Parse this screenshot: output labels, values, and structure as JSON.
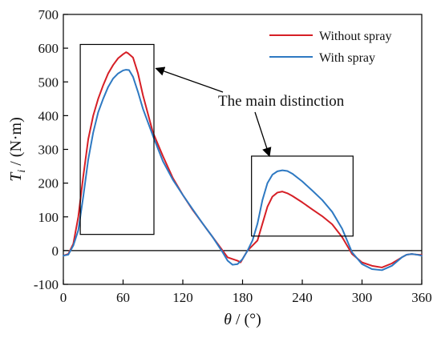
{
  "chart_data": {
    "type": "line",
    "xlabel_symbol": "θ",
    "xlabel_unit": "/ (°)",
    "ylabel_symbol": "T",
    "ylabel_sub": "i",
    "ylabel_unit": "/ (N·m)",
    "xlim": [
      0,
      360
    ],
    "ylim": [
      -100,
      700
    ],
    "xticks": [
      0,
      60,
      120,
      180,
      240,
      300,
      360
    ],
    "yticks": [
      -100,
      0,
      100,
      200,
      300,
      400,
      500,
      600,
      700
    ],
    "grid": false,
    "legend_placement": "top-right",
    "series": [
      {
        "name": "Without spray",
        "color": "#d61f26",
        "x": [
          0,
          5,
          10,
          15,
          20,
          25,
          30,
          35,
          40,
          45,
          50,
          55,
          60,
          63,
          65,
          70,
          75,
          80,
          90,
          100,
          110,
          120,
          130,
          140,
          150,
          160,
          165,
          170,
          175,
          178,
          180,
          185,
          190,
          195,
          200,
          205,
          210,
          215,
          220,
          225,
          230,
          240,
          250,
          260,
          270,
          280,
          290,
          300,
          310,
          320,
          330,
          340,
          345,
          350,
          355,
          360
        ],
        "y": [
          -15,
          -10,
          20,
          100,
          220,
          330,
          400,
          450,
          490,
          525,
          550,
          570,
          582,
          588,
          585,
          572,
          525,
          460,
          350,
          280,
          215,
          165,
          120,
          80,
          40,
          0,
          -20,
          -25,
          -30,
          -35,
          -25,
          0,
          15,
          30,
          80,
          130,
          160,
          172,
          175,
          170,
          162,
          143,
          122,
          102,
          78,
          40,
          -10,
          -35,
          -45,
          -50,
          -38,
          -20,
          -12,
          -10,
          -12,
          -13
        ],
        "stroke_width": 2
      },
      {
        "name": "With spray",
        "color": "#2e79c2",
        "x": [
          0,
          5,
          10,
          15,
          20,
          25,
          30,
          35,
          40,
          45,
          50,
          55,
          60,
          63,
          66,
          70,
          75,
          80,
          90,
          100,
          110,
          120,
          130,
          140,
          150,
          160,
          165,
          170,
          175,
          180,
          185,
          190,
          195,
          200,
          205,
          210,
          215,
          220,
          225,
          230,
          240,
          250,
          260,
          270,
          280,
          290,
          300,
          310,
          320,
          330,
          340,
          345,
          350,
          355,
          360
        ],
        "y": [
          -15,
          -12,
          15,
          60,
          160,
          270,
          350,
          410,
          450,
          485,
          510,
          525,
          534,
          536,
          535,
          515,
          470,
          420,
          340,
          265,
          210,
          165,
          122,
          80,
          40,
          -5,
          -30,
          -42,
          -40,
          -25,
          0,
          30,
          80,
          150,
          200,
          225,
          235,
          238,
          236,
          228,
          205,
          178,
          150,
          115,
          65,
          -5,
          -40,
          -55,
          -58,
          -45,
          -20,
          -12,
          -10,
          -12,
          -15
        ],
        "stroke_width": 2
      }
    ],
    "annotation_text": "The main distinction",
    "highlight_boxes": [
      {
        "x0": 17,
        "x1": 91,
        "y0": 48,
        "y1": 611
      },
      {
        "x0": 189,
        "x1": 291,
        "y0": 43,
        "y1": 280
      }
    ],
    "annotation_arrow_targets": [
      {
        "x": 93,
        "y": 540
      },
      {
        "x": 207,
        "y": 280
      }
    ]
  }
}
